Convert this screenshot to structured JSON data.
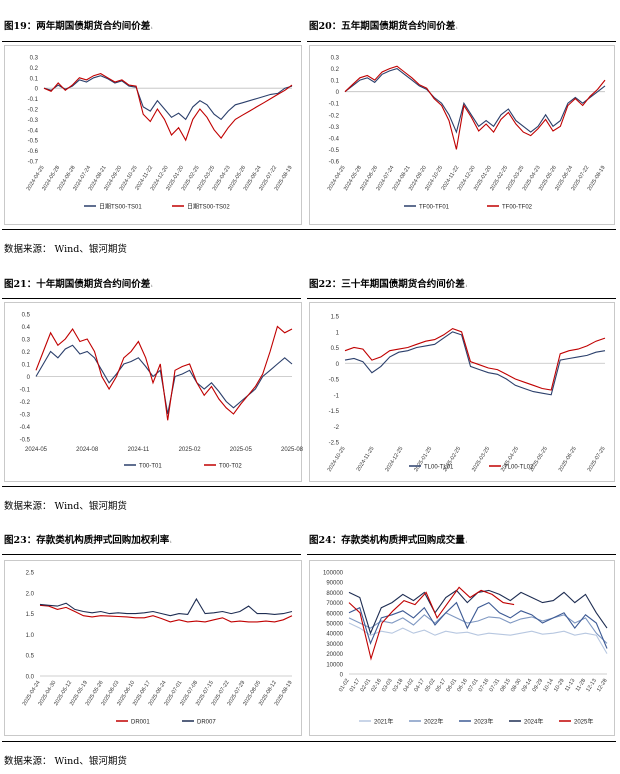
{
  "titles": {
    "c19": "图19：两年期国债期货合约间价差",
    "c20": "图20：五年期国债期货合约间价差",
    "c21": "图21：十年期国债期货合约间价差",
    "c22": "图22：三十年期国债期货合约间价差",
    "c23": "图23：存款类机构质押式回购加权利率",
    "c24": "图24：存款类机构质押式回购成交量"
  },
  "title_mark": "ᵢ",
  "source_note": "数据来源： Wind、银河期货",
  "colors": {
    "navy": "#2b3f6b",
    "red": "#c00000",
    "light1": "#b7c7e0",
    "light2": "#7f98c2",
    "mid": "#3d5a94",
    "dark": "#1e2d52",
    "grid": "#e4e4e4"
  },
  "chart_data": [
    {
      "id": "c19",
      "type": "line",
      "yticks": [
        "0.3",
        "0.2",
        "0.1",
        "0",
        "-0.1",
        "-0.2",
        "-0.3",
        "-0.4",
        "-0.5",
        "-0.6",
        "-0.7"
      ],
      "xticks": [
        "2024-04-25",
        "2024-05-28",
        "2024-06-28",
        "2024-07-24",
        "2024-08-21",
        "2024-09-20",
        "2024-10-25",
        "2024-11-22",
        "2024-12-20",
        "2025-01-20",
        "2025-02-25",
        "2025-03-25",
        "2025-04-23",
        "2025-05-26",
        "2025-06-24",
        "2025-07-22",
        "2025-08-19"
      ],
      "ylim": [
        -0.7,
        0.3
      ],
      "series": [
        {
          "name": "日期TS00-TS01",
          "color": "#2b3f6b",
          "values": [
            0.0,
            -0.02,
            0.03,
            -0.01,
            0.02,
            0.08,
            0.06,
            0.1,
            0.12,
            0.09,
            0.05,
            0.07,
            0.02,
            0.01,
            -0.18,
            -0.22,
            -0.12,
            -0.2,
            -0.28,
            -0.24,
            -0.3,
            -0.18,
            -0.12,
            -0.16,
            -0.25,
            -0.3,
            -0.22,
            -0.16,
            -0.14,
            -0.12,
            -0.1,
            -0.08,
            -0.06,
            -0.05,
            0.0,
            0.02
          ]
        },
        {
          "name": "日期TS00-TS02",
          "color": "#c00000",
          "values": [
            0.0,
            -0.03,
            0.05,
            -0.02,
            0.03,
            0.1,
            0.08,
            0.12,
            0.14,
            0.1,
            0.06,
            0.08,
            0.03,
            0.02,
            -0.25,
            -0.32,
            -0.2,
            -0.3,
            -0.45,
            -0.38,
            -0.5,
            -0.3,
            -0.2,
            -0.28,
            -0.4,
            -0.48,
            -0.38,
            -0.3,
            -0.26,
            -0.22,
            -0.18,
            -0.14,
            -0.1,
            -0.06,
            -0.02,
            0.03
          ]
        }
      ]
    },
    {
      "id": "c20",
      "type": "line",
      "yticks": [
        "0.3",
        "0.2",
        "0.1",
        "0",
        "-0.1",
        "-0.2",
        "-0.3",
        "-0.4",
        "-0.5",
        "-0.6"
      ],
      "xticks": [
        "2024-04-25",
        "2024-05-28",
        "2024-06-26",
        "2024-07-24",
        "2024-08-21",
        "2024-09-20",
        "2024-10-25",
        "2024-11-22",
        "2024-12-20",
        "2025-01-20",
        "2025-02-25",
        "2025-03-25",
        "2025-04-23",
        "2025-05-26",
        "2025-06-24",
        "2025-07-22",
        "2025-08-19"
      ],
      "ylim": [
        -0.6,
        0.3
      ],
      "series": [
        {
          "name": "TF00-TF01",
          "color": "#2b3f6b",
          "values": [
            0.0,
            0.05,
            0.1,
            0.12,
            0.08,
            0.15,
            0.18,
            0.2,
            0.15,
            0.1,
            0.05,
            0.02,
            -0.05,
            -0.1,
            -0.2,
            -0.35,
            -0.1,
            -0.2,
            -0.3,
            -0.25,
            -0.3,
            -0.2,
            -0.15,
            -0.25,
            -0.3,
            -0.35,
            -0.3,
            -0.2,
            -0.3,
            -0.25,
            -0.1,
            -0.05,
            -0.1,
            -0.05,
            0.0,
            0.05
          ]
        },
        {
          "name": "TF00-TF02",
          "color": "#c00000",
          "values": [
            0.0,
            0.06,
            0.12,
            0.14,
            0.1,
            0.17,
            0.2,
            0.22,
            0.17,
            0.12,
            0.06,
            0.03,
            -0.06,
            -0.12,
            -0.25,
            -0.5,
            -0.12,
            -0.22,
            -0.34,
            -0.28,
            -0.35,
            -0.24,
            -0.18,
            -0.28,
            -0.35,
            -0.38,
            -0.32,
            -0.24,
            -0.34,
            -0.3,
            -0.12,
            -0.06,
            -0.12,
            -0.04,
            0.02,
            0.1
          ]
        }
      ]
    },
    {
      "id": "c21",
      "type": "line",
      "yticks": [
        "0.5",
        "0.4",
        "0.3",
        "0.2",
        "0.1",
        "0",
        "-0.1",
        "-0.2",
        "-0.3",
        "-0.4",
        "-0.5"
      ],
      "xticks": [
        "2024-05",
        "2024-08",
        "2024-11",
        "2025-02",
        "2025-05",
        "2025-08"
      ],
      "ylim": [
        -0.5,
        0.5
      ],
      "series": [
        {
          "name": "T00-T01",
          "color": "#2b3f6b",
          "values": [
            0.0,
            0.1,
            0.2,
            0.15,
            0.22,
            0.25,
            0.18,
            0.2,
            0.15,
            0.05,
            -0.05,
            0.02,
            0.1,
            0.12,
            0.15,
            0.08,
            0.0,
            0.05,
            -0.3,
            0.0,
            0.02,
            0.05,
            -0.05,
            -0.1,
            -0.05,
            -0.12,
            -0.2,
            -0.25,
            -0.2,
            -0.15,
            -0.1,
            0.0,
            0.05,
            0.1,
            0.15,
            0.1
          ]
        },
        {
          "name": "T00-T02",
          "color": "#c00000",
          "values": [
            0.05,
            0.2,
            0.35,
            0.25,
            0.3,
            0.38,
            0.28,
            0.3,
            0.2,
            0.0,
            -0.1,
            0.0,
            0.15,
            0.2,
            0.28,
            0.15,
            -0.05,
            0.1,
            -0.35,
            0.05,
            0.08,
            0.1,
            -0.05,
            -0.15,
            -0.08,
            -0.18,
            -0.25,
            -0.3,
            -0.22,
            -0.15,
            -0.08,
            0.02,
            0.2,
            0.4,
            0.35,
            0.38
          ]
        }
      ]
    },
    {
      "id": "c22",
      "type": "line",
      "yticks": [
        "1.5",
        "1",
        "0.5",
        "0",
        "-0.5",
        "-1",
        "-1.5",
        "-2",
        "-2.5"
      ],
      "xticks": [
        "2024-10-25",
        "2024-11-25",
        "2024-12-25",
        "2025-01-25",
        "2025-02-25",
        "2025-03-25",
        "2025-04-25",
        "2025-05-25",
        "2025-06-25",
        "2025-07-25"
      ],
      "ylim": [
        -2.5,
        1.5
      ],
      "series": [
        {
          "name": "TL00-TL01",
          "color": "#2b3f6b",
          "values": [
            0.1,
            0.15,
            0.05,
            -0.3,
            -0.1,
            0.2,
            0.35,
            0.4,
            0.5,
            0.55,
            0.6,
            0.8,
            1.0,
            0.9,
            -0.1,
            -0.2,
            -0.3,
            -0.35,
            -0.5,
            -0.7,
            -0.8,
            -0.9,
            -0.95,
            -1.0,
            0.1,
            0.15,
            0.2,
            0.25,
            0.35,
            0.4
          ]
        },
        {
          "name": "TL00-TL02",
          "color": "#c00000",
          "values": [
            0.4,
            0.5,
            0.45,
            0.1,
            0.2,
            0.4,
            0.45,
            0.5,
            0.6,
            0.7,
            0.75,
            0.9,
            1.1,
            1.0,
            0.05,
            -0.05,
            -0.15,
            -0.2,
            -0.35,
            -0.5,
            -0.6,
            -0.7,
            -0.8,
            -0.85,
            0.3,
            0.4,
            0.45,
            0.55,
            0.7,
            0.8
          ]
        }
      ]
    },
    {
      "id": "c23",
      "type": "line",
      "yticks": [
        "2.5",
        "2.0",
        "1.5",
        "1.0",
        "0.5",
        "0.0"
      ],
      "xticks": [
        "2025-04-24",
        "2025-04-30",
        "2025-05-12",
        "2025-05-19",
        "2025-05-26",
        "2025-06-03",
        "2025-06-10",
        "2025-06-17",
        "2025-06-24",
        "2025-07-01",
        "2025-07-08",
        "2025-07-15",
        "2025-07-22",
        "2025-07-29",
        "2025-08-05",
        "2025-08-12",
        "2025-08-19"
      ],
      "ylim": [
        0,
        2.5
      ],
      "series": [
        {
          "name": "DR001",
          "color": "#c00000",
          "values": [
            1.7,
            1.68,
            1.6,
            1.65,
            1.55,
            1.45,
            1.42,
            1.45,
            1.44,
            1.43,
            1.42,
            1.4,
            1.4,
            1.45,
            1.38,
            1.3,
            1.35,
            1.3,
            1.32,
            1.3,
            1.35,
            1.4,
            1.3,
            1.32,
            1.3,
            1.3,
            1.32,
            1.3,
            1.35,
            1.45
          ]
        },
        {
          "name": "DR007",
          "color": "#1e2d52",
          "values": [
            1.72,
            1.7,
            1.68,
            1.75,
            1.6,
            1.55,
            1.52,
            1.55,
            1.5,
            1.52,
            1.5,
            1.5,
            1.52,
            1.55,
            1.5,
            1.45,
            1.5,
            1.48,
            1.85,
            1.5,
            1.52,
            1.55,
            1.5,
            1.55,
            1.68,
            1.5,
            1.5,
            1.48,
            1.5,
            1.55
          ]
        }
      ]
    },
    {
      "id": "c24",
      "type": "line",
      "yticks": [
        "100000",
        "90000",
        "80000",
        "70000",
        "60000",
        "50000",
        "40000",
        "30000",
        "20000",
        "10000",
        "0"
      ],
      "xticks": [
        "01-02",
        "01-17",
        "02-01",
        "02-16",
        "03-03",
        "03-18",
        "04-02",
        "04-17",
        "05-02",
        "05-17",
        "06-01",
        "06-16",
        "07-01",
        "07-16",
        "07-31",
        "08-15",
        "08-30",
        "09-14",
        "09-29",
        "10-14",
        "10-29",
        "11-13",
        "11-28",
        "12-13",
        "12-28"
      ],
      "ylim": [
        0,
        100000
      ],
      "series": [
        {
          "name": "2021年",
          "color": "#b7c7e0",
          "values": [
            50000,
            45000,
            38000,
            42000,
            40000,
            45000,
            40000,
            43000,
            38000,
            42000,
            40000,
            41000,
            38000,
            40000,
            39000,
            38000,
            40000,
            42000,
            39000,
            40000,
            42000,
            38000,
            40000,
            38000,
            20000
          ]
        },
        {
          "name": "2022年",
          "color": "#7f98c2",
          "values": [
            55000,
            50000,
            45000,
            52000,
            50000,
            55000,
            48000,
            58000,
            50000,
            60000,
            55000,
            50000,
            52000,
            56000,
            55000,
            50000,
            54000,
            56000,
            52000,
            55000,
            58000,
            50000,
            55000,
            40000,
            30000
          ]
        },
        {
          "name": "2023年",
          "color": "#3d5a94",
          "values": [
            60000,
            65000,
            30000,
            55000,
            58000,
            62000,
            55000,
            65000,
            48000,
            60000,
            70000,
            45000,
            65000,
            70000,
            60000,
            55000,
            62000,
            58000,
            50000,
            55000,
            60000,
            45000,
            58000,
            50000,
            25000
          ]
        },
        {
          "name": "2024年",
          "color": "#1e2d52",
          "values": [
            80000,
            75000,
            40000,
            65000,
            70000,
            78000,
            72000,
            80000,
            60000,
            75000,
            82000,
            70000,
            80000,
            82000,
            78000,
            72000,
            80000,
            75000,
            70000,
            72000,
            80000,
            70000,
            78000,
            60000,
            45000
          ]
        },
        {
          "name": "2025年",
          "color": "#c00000",
          "values": [
            70000,
            60000,
            15000,
            50000,
            62000,
            72000,
            68000,
            80000,
            55000,
            70000,
            85000,
            75000,
            82000,
            78000,
            70000,
            68000
          ]
        }
      ]
    }
  ]
}
